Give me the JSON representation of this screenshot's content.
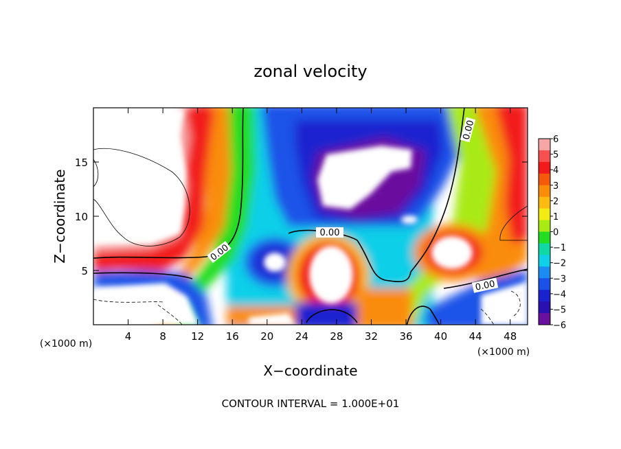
{
  "chart_data": {
    "type": "heatmap",
    "title": "zonal velocity",
    "xlabel": "X−coordinate",
    "ylabel": "Z−coordinate",
    "x_unit": "(×1000 m)",
    "y_unit": "(×1000 m)",
    "xlim": [
      0,
      50
    ],
    "ylim": [
      0,
      20
    ],
    "x_ticks": [
      4,
      8,
      12,
      16,
      20,
      24,
      28,
      32,
      36,
      40,
      44,
      48
    ],
    "y_ticks": [
      5,
      10,
      15
    ],
    "colorbar": {
      "labels": [
        "6",
        "5",
        "4",
        "3",
        "2",
        "1",
        "0",
        "−1",
        "−2",
        "−3",
        "−4",
        "−5",
        "−6"
      ],
      "colors": [
        "#f7a6a6",
        "#f75050",
        "#f21a1a",
        "#f55a0a",
        "#fa8c0a",
        "#fdbb12",
        "#f3ec12",
        "#a9ea12",
        "#22dd22",
        "#10d9a5",
        "#10cfe8",
        "#1a8cf2",
        "#1a52e8",
        "#1a22cf",
        "#2a10b0",
        "#6a109e"
      ]
    },
    "contour_labels": [
      "0.00",
      "0.00",
      "0.00",
      "0.00"
    ],
    "contour_interval_text": "CONTOUR INTERVAL = 1.000E+01"
  }
}
